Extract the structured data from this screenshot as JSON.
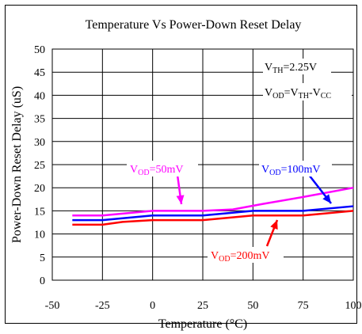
{
  "chart_data": {
    "type": "line",
    "title": "Temperature Vs Power-Down Reset Delay",
    "xlabel": "Temperature (°C)",
    "ylabel": "Power-Down Reset Delay (uS)",
    "xlim": [
      -50,
      100
    ],
    "ylim": [
      0,
      50
    ],
    "x_ticks": [
      "-50",
      "-25",
      "0",
      "25",
      "50",
      "75",
      "100"
    ],
    "y_ticks": [
      "0",
      "5",
      "10",
      "15",
      "20",
      "25",
      "30",
      "35",
      "40",
      "45",
      "50"
    ],
    "grid": true,
    "series": [
      {
        "name": "VOD=50mV",
        "color": "#ff00ff",
        "x": [
          -40,
          -25,
          0,
          25,
          40,
          55,
          75,
          100
        ],
        "y": [
          14,
          14,
          15,
          15,
          15.3,
          16.5,
          18,
          20
        ]
      },
      {
        "name": "VOD=100mV",
        "color": "#0000ff",
        "x": [
          -40,
          -25,
          0,
          25,
          50,
          75,
          100
        ],
        "y": [
          13,
          13,
          14,
          14,
          15,
          15,
          16
        ]
      },
      {
        "name": "VOD=200mV",
        "color": "#ff0000",
        "x": [
          -40,
          -25,
          -15,
          0,
          25,
          50,
          75,
          100
        ],
        "y": [
          12,
          12,
          12.6,
          13,
          13,
          14,
          14,
          15
        ]
      }
    ],
    "conditions": [
      {
        "main": "V",
        "sub": "TH",
        "rest": "=2.25V"
      },
      {
        "main": "V",
        "sub": "OD",
        "rest": "=V",
        "sub2": "TH",
        "rest2": "-V",
        "sub3": "CC"
      }
    ],
    "annotations": [
      {
        "main": "V",
        "sub": "OD",
        "rest": "=50mV",
        "color": "#ff00ff"
      },
      {
        "main": "V",
        "sub": "OD",
        "rest": "=100mV",
        "color": "#0000ff"
      },
      {
        "main": "V",
        "sub": "OD",
        "rest": "=200mV",
        "color": "#ff0000"
      }
    ]
  }
}
